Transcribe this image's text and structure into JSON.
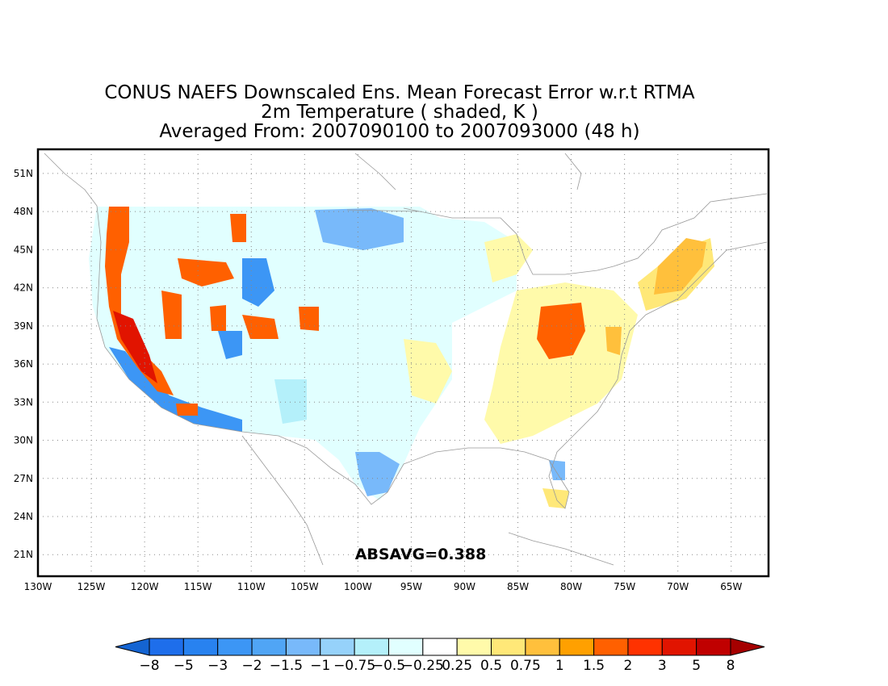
{
  "title": {
    "line1": "CONUS NAEFS Downscaled Ens. Mean Forecast Error w.r.t RTMA",
    "line2": "2m Temperature ( shaded, K )",
    "line3": "Averaged From: 2007090100 to 2007093000 (48 h)"
  },
  "annotation": "ABSAVG=0.388",
  "lon_labels": [
    "130W",
    "125W",
    "120W",
    "115W",
    "110W",
    "105W",
    "100W",
    "95W",
    "90W",
    "85W",
    "80W",
    "75W",
    "70W",
    "65W"
  ],
  "lat_labels": [
    "51N",
    "48N",
    "45N",
    "42N",
    "39N",
    "36N",
    "33N",
    "30N",
    "27N",
    "24N",
    "21N"
  ],
  "colorbar": {
    "labels": [
      "−8",
      "−5",
      "−3",
      "−2",
      "−1.5",
      "−1",
      "−0.75",
      "−0.5",
      "−0.25",
      "0.25",
      "0.5",
      "0.75",
      "1",
      "1.5",
      "2",
      "3",
      "5",
      "8"
    ],
    "colors": [
      "#1464d2",
      "#1e6eeb",
      "#2882f0",
      "#3c96f5",
      "#50a5f5",
      "#78b9fa",
      "#96d2fa",
      "#b4f0fa",
      "#e1ffff",
      "#ffffff",
      "#fffaaa",
      "#ffe878",
      "#ffc03c",
      "#ffa000",
      "#ff6000",
      "#ff3200",
      "#e11400",
      "#c00000",
      "#a50000"
    ]
  },
  "field_colors": {
    "neg_strong": "#3c96f5",
    "neg_mid": "#78b9fa",
    "neg_weak": "#b4f0fa",
    "neg_faint": "#e1ffff",
    "pos_faint": "#fffaaa",
    "pos_weak": "#ffe878",
    "pos_mid": "#ffc03c",
    "pos_strong": "#ff6000",
    "pos_max": "#e11400"
  }
}
